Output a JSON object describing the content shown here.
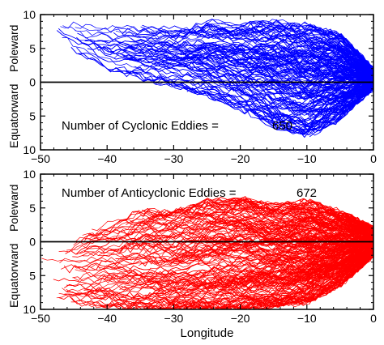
{
  "chart_data": [
    {
      "type": "line",
      "panel": "top",
      "xlim": [
        -50,
        0
      ],
      "ylim": [
        -10,
        10
      ],
      "x_ticks": [
        "−50",
        "−40",
        "−30",
        "−20",
        "−10",
        "0"
      ],
      "y_ticks": [
        "10",
        "5",
        "0",
        "5",
        "10"
      ],
      "ylabel_top": "Poleward",
      "ylabel_bottom": "Equatorward",
      "annotation": "Number of Cyclonic Eddies =",
      "annotation_value": "650",
      "track_count": 650,
      "color": "#0000ff",
      "zero_line": true,
      "envelope": {
        "x": [
          -48,
          -45,
          -40,
          -35,
          -30,
          -25,
          -20,
          -15,
          -10,
          -5,
          0
        ],
        "y_upper": [
          8.5,
          8.5,
          8.0,
          8.0,
          8.0,
          9.0,
          8.5,
          9.0,
          8.5,
          7.0,
          2.0
        ],
        "y_lower": [
          6.5,
          4.5,
          1.5,
          0.5,
          -0.5,
          -2.0,
          -4.0,
          -6.5,
          -8.0,
          -5.5,
          -1.0
        ]
      }
    },
    {
      "type": "line",
      "panel": "bottom",
      "xlim": [
        -50,
        0
      ],
      "ylim": [
        -10,
        10
      ],
      "x_ticks": [
        "−50",
        "−40",
        "−30",
        "−20",
        "−10",
        "0"
      ],
      "y_ticks": [
        "10",
        "5",
        "0",
        "5",
        "10"
      ],
      "ylabel_top": "Poleward",
      "ylabel_bottom": "Equatorward",
      "xlabel": "Longitude",
      "annotation": "Number of Anticyclonic Eddies =",
      "annotation_value": "672",
      "track_count": 672,
      "color": "#ff0000",
      "zero_line": true,
      "envelope": {
        "x": [
          -50,
          -45,
          -40,
          -35,
          -30,
          -25,
          -20,
          -15,
          -10,
          -5,
          0
        ],
        "y_upper": [
          0.0,
          1.5,
          3.0,
          4.5,
          4.5,
          6.0,
          6.5,
          5.5,
          6.0,
          4.5,
          2.0
        ],
        "y_lower": [
          -7.5,
          -9.0,
          -9.5,
          -10.0,
          -10.0,
          -10.0,
          -10.0,
          -9.5,
          -9.0,
          -6.5,
          -2.0
        ]
      }
    }
  ]
}
